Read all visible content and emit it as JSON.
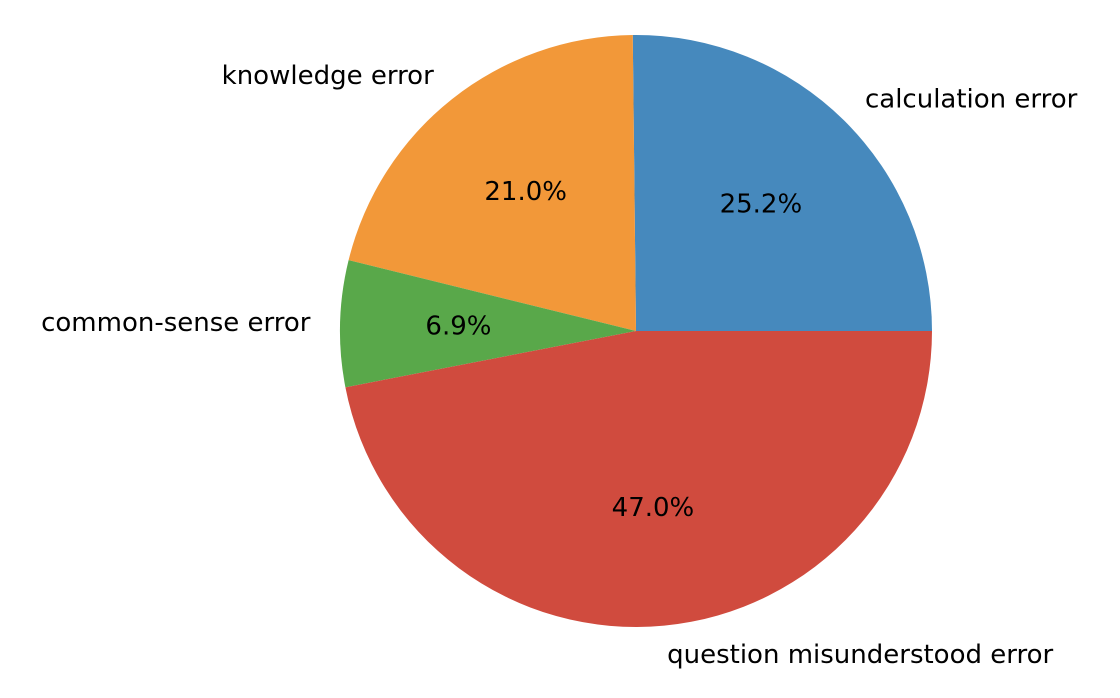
{
  "chart_data": {
    "type": "pie",
    "title": "",
    "slices": [
      {
        "label": "calculation error",
        "value": 25.2,
        "pct_label": "25.2%",
        "color": "#4689bd"
      },
      {
        "label": "knowledge error",
        "value": 21.0,
        "pct_label": "21.0%",
        "color": "#f29839"
      },
      {
        "label": "common-sense error",
        "value": 6.9,
        "pct_label": "6.9%",
        "color": "#59a84a"
      },
      {
        "label": "question misunderstood error",
        "value": 47.0,
        "pct_label": "47.0%",
        "color": "#d04b3e"
      }
    ],
    "start_angle_deg": 0,
    "direction": "counterclockwise",
    "legend": "none"
  }
}
